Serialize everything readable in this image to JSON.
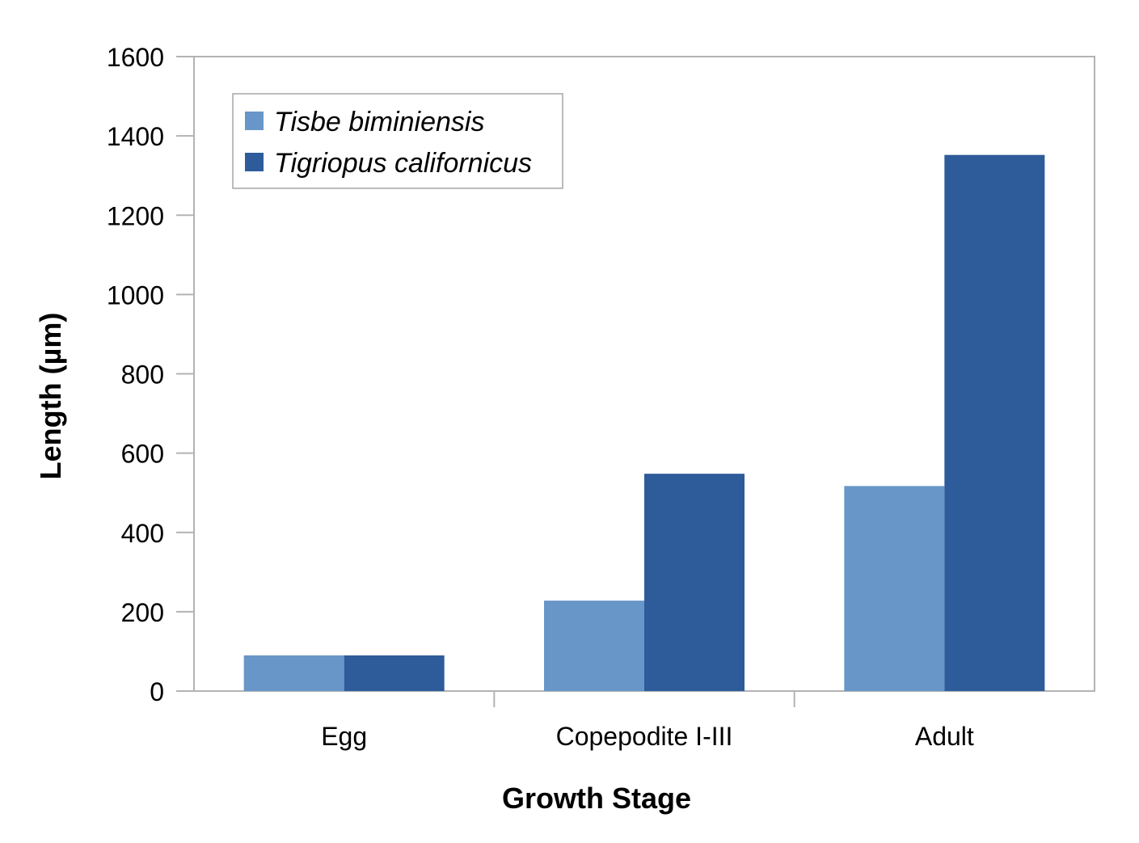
{
  "chart_data": {
    "type": "bar",
    "title": "",
    "xlabel": "Growth Stage",
    "ylabel": "Length (µm)",
    "categories": [
      "Egg",
      "Copepodite I-III",
      "Adult"
    ],
    "series": [
      {
        "name": "Tisbe biminiensis",
        "values": [
          90,
          228,
          517
        ],
        "color": "#6896c8"
      },
      {
        "name": "Tigriopus californicus",
        "values": [
          90,
          548,
          1352
        ],
        "color": "#2e5b9a"
      }
    ],
    "ylim": [
      0,
      1600
    ],
    "yticks": [
      "0",
      "200",
      "400",
      "600",
      "800",
      "1000",
      "1200",
      "1400",
      "1600"
    ],
    "grid": false,
    "legend_position": "top-left"
  }
}
